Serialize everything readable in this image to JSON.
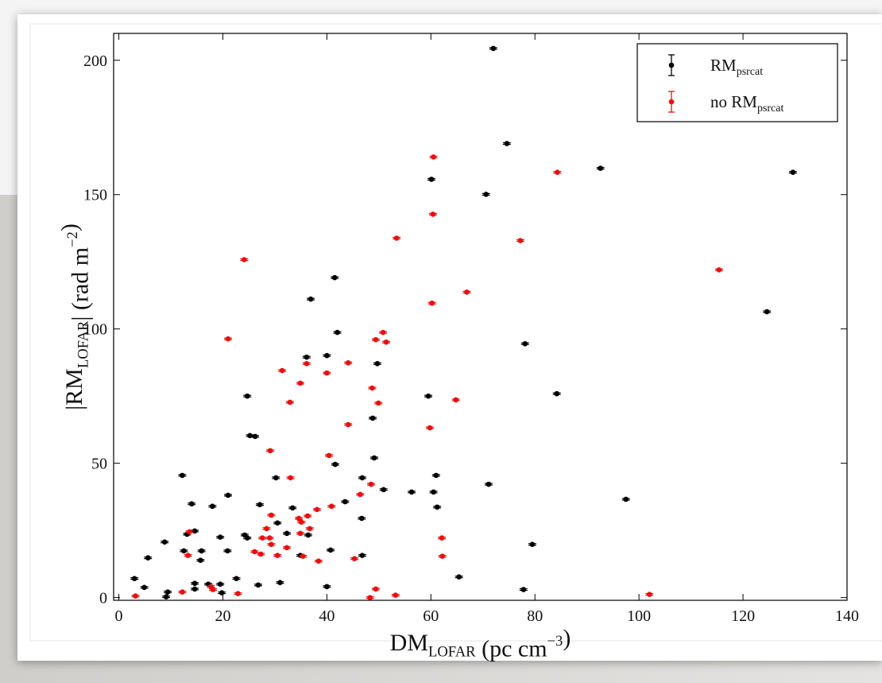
{
  "chart_data": {
    "type": "scatter",
    "x_label": [
      {
        "text": "DM"
      },
      {
        "text": "LOFAR",
        "shift": "sub"
      },
      {
        "text": " (pc cm"
      },
      {
        "text": "−3",
        "shift": "sup"
      },
      {
        "text": ")"
      }
    ],
    "y_label": [
      {
        "text": "|RM"
      },
      {
        "text": "LOFAR",
        "shift": "sub"
      },
      {
        "text": "| (rad m"
      },
      {
        "text": "−2",
        "shift": "sup"
      },
      {
        "text": ")"
      }
    ],
    "xlim": [
      -1,
      140
    ],
    "xticks": [
      0,
      20,
      40,
      60,
      80,
      100,
      120,
      140
    ],
    "ylim": [
      -1,
      210
    ],
    "yticks": [
      0,
      50,
      100,
      150,
      200
    ],
    "grid": false,
    "legend": "upper right",
    "series": [
      {
        "name": "RM",
        "name_sub": "psrcat",
        "color": "#000000",
        "x": [
          72.0,
          74.6,
          92.6,
          129.6,
          60.1,
          70.6,
          41.5,
          36.9,
          124.6,
          42.0,
          78.1,
          40.0,
          36.1,
          49.7,
          24.7,
          59.5,
          84.2,
          48.8,
          25.2,
          26.2,
          49.1,
          41.6,
          12.2,
          61.0,
          46.8,
          30.2,
          71.1,
          50.9,
          60.5,
          21.0,
          56.3,
          97.5,
          43.5,
          14.0,
          27.1,
          18.0,
          61.2,
          33.4,
          46.7,
          30.5,
          14.6,
          13.1,
          32.3,
          24.2,
          36.4,
          24.7,
          19.5,
          8.8,
          79.5,
          20.9,
          40.7,
          12.5,
          5.6,
          46.8,
          34.9,
          15.7,
          15.9,
          3.0,
          22.6,
          65.4,
          14.6,
          31.0,
          4.9,
          14.6,
          26.8,
          17.2,
          19.5,
          40.0,
          77.8,
          9.4,
          19.8,
          9.1
        ],
        "values": [
          204.4,
          169.0,
          159.8,
          158.3,
          155.7,
          150.1,
          119.1,
          111.1,
          106.4,
          98.7,
          94.5,
          90.1,
          89.5,
          87.1,
          75.0,
          75.0,
          75.9,
          66.8,
          60.3,
          60.0,
          52.0,
          49.6,
          45.5,
          45.5,
          44.6,
          44.6,
          42.2,
          40.2,
          39.3,
          38.1,
          39.3,
          36.6,
          35.7,
          34.9,
          34.6,
          34.0,
          33.7,
          33.4,
          29.5,
          27.8,
          24.8,
          23.6,
          23.9,
          23.3,
          23.3,
          22.2,
          22.5,
          20.7,
          19.8,
          17.4,
          17.7,
          17.4,
          14.8,
          15.7,
          15.7,
          13.9,
          17.4,
          7.1,
          7.1,
          7.7,
          5.3,
          5.6,
          3.8,
          3.2,
          4.7,
          5.0,
          5.0,
          4.1,
          3.0,
          2.1,
          1.8,
          0.3
        ]
      },
      {
        "name": "no RM",
        "name_sub": "psrcat",
        "color": "#e8100f",
        "x": [
          60.5,
          84.3,
          60.4,
          53.4,
          77.2,
          24.1,
          115.4,
          66.9,
          60.2,
          50.8,
          51.4,
          49.4,
          21.0,
          36.1,
          44.1,
          31.4,
          40.0,
          34.9,
          48.7,
          49.9,
          32.9,
          64.8,
          44.1,
          59.8,
          29.1,
          40.4,
          33.0,
          48.5,
          46.4,
          40.9,
          38.1,
          29.3,
          34.6,
          35.1,
          36.3,
          28.4,
          36.7,
          34.9,
          13.6,
          62.1,
          27.6,
          29.0,
          32.3,
          29.3,
          26.1,
          27.3,
          13.3,
          30.5,
          35.4,
          62.2,
          38.4,
          45.3,
          17.7,
          18.1,
          12.2,
          22.9,
          49.4,
          3.2,
          48.3,
          53.2,
          102.0
        ],
        "values": [
          164.0,
          158.3,
          142.7,
          133.8,
          132.9,
          125.8,
          122.0,
          113.7,
          109.6,
          98.7,
          95.1,
          96.0,
          96.3,
          87.1,
          87.4,
          84.5,
          83.6,
          79.8,
          78.0,
          72.4,
          72.7,
          73.6,
          64.4,
          63.2,
          54.7,
          52.9,
          44.6,
          42.2,
          38.4,
          34.0,
          32.8,
          30.7,
          29.5,
          28.1,
          30.4,
          25.7,
          25.7,
          23.9,
          24.5,
          22.2,
          22.2,
          22.2,
          18.6,
          19.8,
          17.1,
          16.2,
          15.7,
          15.7,
          15.4,
          15.4,
          13.6,
          14.5,
          4.1,
          3.0,
          2.1,
          1.5,
          3.2,
          0.6,
          0.0,
          0.9,
          1.2
        ]
      }
    ]
  }
}
